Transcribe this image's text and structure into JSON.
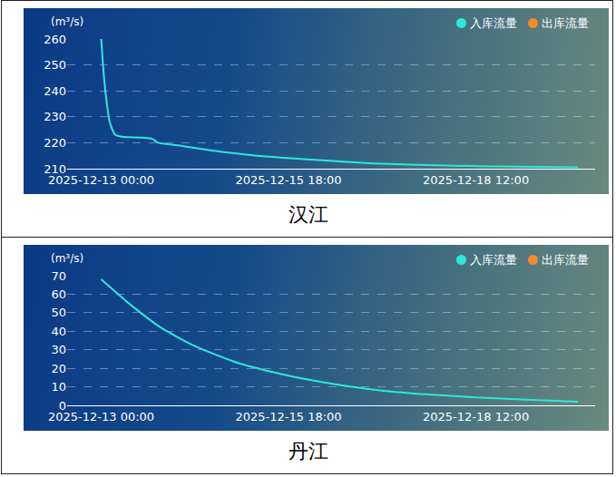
{
  "chart_data": [
    {
      "type": "line",
      "title": "汉江",
      "ylabel": "(m³/s)",
      "x": [
        "2025-12-13 00:00",
        "2025-12-13 01:00",
        "2025-12-13 02:00",
        "2025-12-13 03:00",
        "2025-12-13 05:00",
        "2025-12-13 08:00",
        "2025-12-13 14:00",
        "2025-12-13 18:00",
        "2025-12-13 20:00",
        "2025-12-14 03:00",
        "2025-12-14 15:00",
        "2025-12-15 07:00",
        "2025-12-16 02:00",
        "2025-12-17 00:00",
        "2025-12-18 01:00",
        "2025-12-19 02:00",
        "2025-12-20 00:00"
      ],
      "series": [
        {
          "name": "入库流量",
          "color": "#2ee8d8",
          "values": [
            260,
            245,
            235,
            228,
            223,
            222.2,
            222,
            221.5,
            220,
            219,
            217,
            215,
            213.5,
            212,
            211.2,
            210.8,
            210.5
          ]
        },
        {
          "name": "出库流量",
          "color": "#f28c28",
          "values": [
            null,
            null,
            null,
            null,
            null,
            null,
            null,
            null,
            null,
            null,
            null,
            null,
            null,
            null,
            null,
            null,
            null
          ]
        }
      ],
      "xlim": [
        "2025-12-12 12:00",
        "2025-12-20 06:00"
      ],
      "xticks": [
        "2025-12-13 00:00",
        "2025-12-15 18:00",
        "2025-12-18 12:00"
      ],
      "ylim": [
        210,
        260
      ],
      "yticks": [
        210,
        220,
        230,
        240,
        250,
        260
      ],
      "grid": true,
      "legend": "top right"
    },
    {
      "type": "line",
      "title": "丹江",
      "ylabel": "(m³/s)",
      "x": [
        "2025-12-13 00:00",
        "2025-12-13 09:00",
        "2025-12-13 21:00",
        "2025-12-14 09:00",
        "2025-12-15 00:00",
        "2025-12-15 18:00",
        "2025-12-16 08:00",
        "2025-12-17 00:00",
        "2025-12-17 18:00",
        "2025-12-18 12:00",
        "2025-12-19 06:00",
        "2025-12-20 00:00"
      ],
      "series": [
        {
          "name": "入库流量",
          "color": "#2ee8d8",
          "values": [
            68,
            56,
            42,
            32,
            23,
            16,
            12,
            8.5,
            6,
            4.3,
            3,
            2
          ]
        },
        {
          "name": "出库流量",
          "color": "#f28c28",
          "values": [
            null,
            null,
            null,
            null,
            null,
            null,
            null,
            null,
            null,
            null,
            null,
            null
          ]
        }
      ],
      "xlim": [
        "2025-12-12 12:00",
        "2025-12-20 06:00"
      ],
      "xticks": [
        "2025-12-13 00:00",
        "2025-12-15 18:00",
        "2025-12-18 12:00"
      ],
      "ylim": [
        0,
        70
      ],
      "yticks": [
        0,
        10,
        20,
        30,
        40,
        50,
        60,
        70
      ],
      "grid": true,
      "legend": "top right"
    }
  ]
}
